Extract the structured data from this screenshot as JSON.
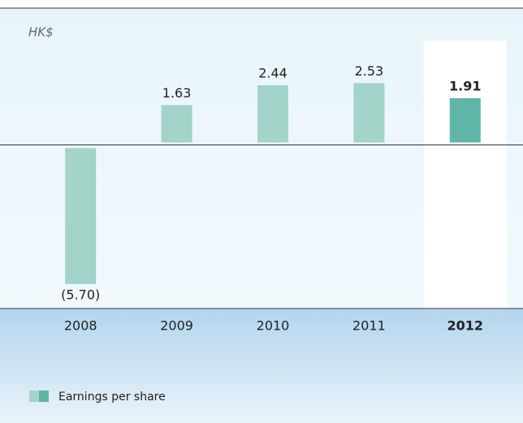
{
  "chart_data": {
    "type": "bar",
    "unit_label": "HK$",
    "categories": [
      "2008",
      "2009",
      "2010",
      "2011",
      "2012"
    ],
    "series": [
      {
        "name": "Earnings per share",
        "color": "#a3d4c9",
        "values": [
          -5.7,
          1.63,
          2.44,
          2.53,
          1.91
        ],
        "value_labels": [
          "(5.70)",
          "1.63",
          "2.44",
          "2.53",
          "1.91"
        ]
      }
    ],
    "highlight": 4,
    "highlight_color": "#5fb5a8",
    "ylim": [
      -6.7,
      5.6
    ]
  }
}
